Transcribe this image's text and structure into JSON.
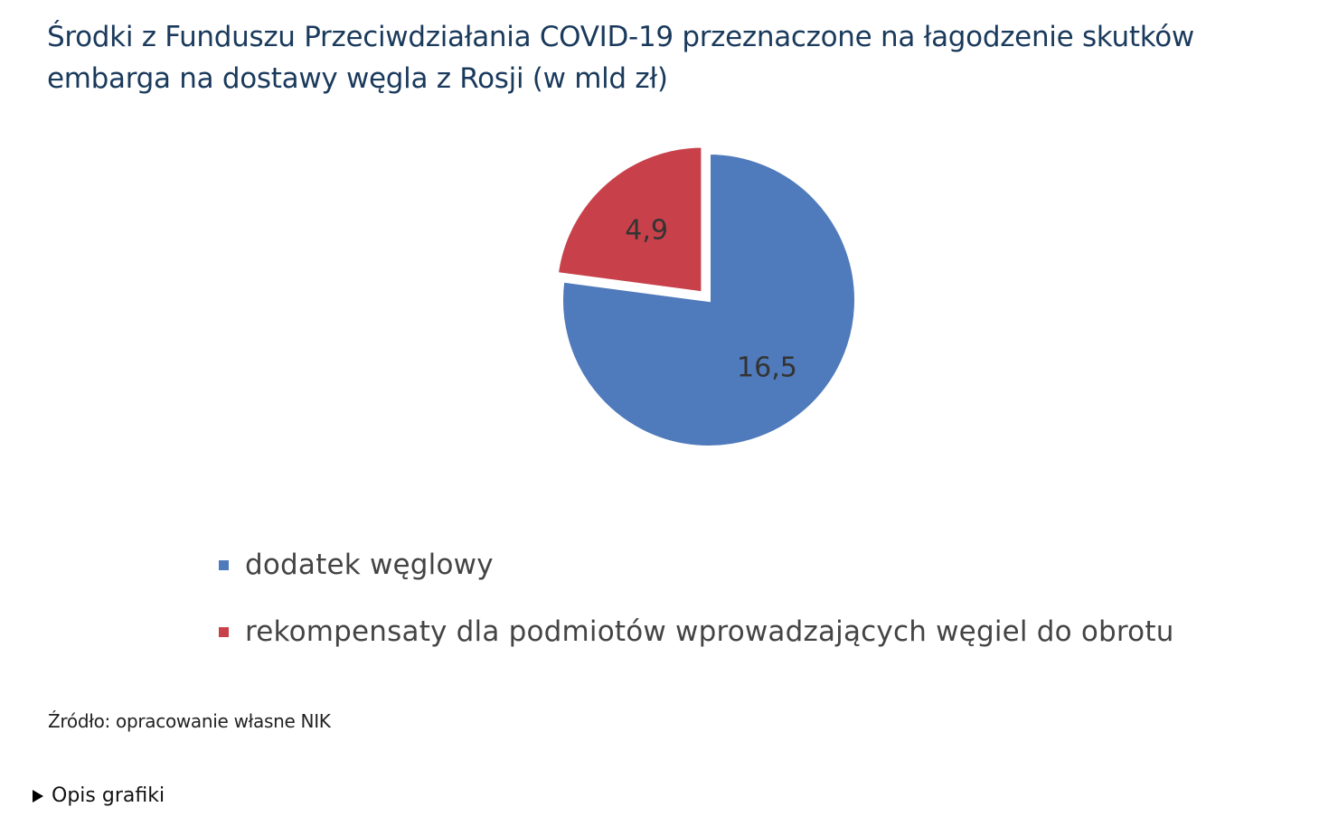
{
  "chart_data": {
    "type": "pie",
    "title": "Środki z Funduszu Przeciwdziałania COVID-19 przeznaczone na łagodzenie skutków embarga na dostawy węgla z Rosji (w mld zł)",
    "title_line1": "Środki z Funduszu Przeciwdziałania COVID-19 przeznaczone na łagodzenie skutków",
    "title_line2": "embarga na dostawy węgla z Rosji (w mld zł)",
    "slices": [
      {
        "name": "dodatek węglowy",
        "value": 16.5,
        "label": "16,5",
        "color": "#4f7abb"
      },
      {
        "name": "rekompensaty dla podmiotów wprowadzających węgiel do obrotu",
        "value": 4.9,
        "label": "4,9",
        "color": "#c8414a"
      }
    ],
    "legend_position": "bottom"
  },
  "source": "Źródło: opracowanie własne NIK",
  "details_label": "Opis grafiki"
}
